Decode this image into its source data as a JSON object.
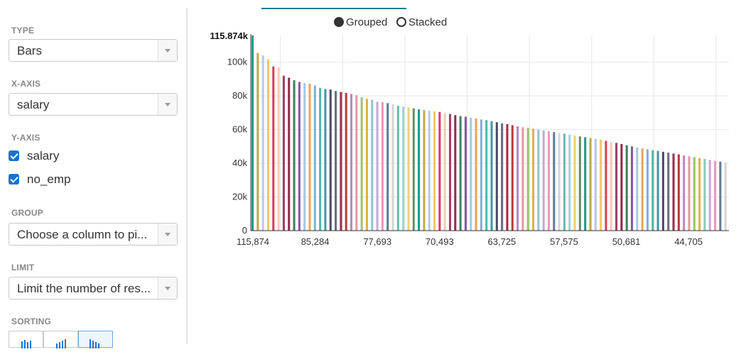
{
  "sidebar": {
    "type_label": "TYPE",
    "type_value": "Bars",
    "xaxis_label": "X-AXIS",
    "xaxis_value": "salary",
    "yaxis_label": "Y-AXIS",
    "yaxis_items": [
      {
        "label": "salary",
        "checked": true
      },
      {
        "label": "no_emp",
        "checked": true
      }
    ],
    "group_label": "GROUP",
    "group_placeholder": "Choose a column to pi...",
    "limit_label": "LIMIT",
    "limit_placeholder": "Limit the number of res...",
    "sorting_label": "SORTING",
    "sorting_active": 2
  },
  "legend": {
    "grouped": "Grouped",
    "stacked": "Stacked",
    "selected": "grouped"
  },
  "chart_data": {
    "type": "bar",
    "max_label": "115.874k",
    "ylim": [
      0,
      115874
    ],
    "y_ticks": [
      "0",
      "20k",
      "40k",
      "60k",
      "80k",
      "100k"
    ],
    "y_tick_values": [
      0,
      20000,
      40000,
      60000,
      80000,
      100000
    ],
    "x_tick_labels": [
      "115,874",
      "85,284",
      "77,693",
      "70,493",
      "63,725",
      "57,575",
      "50,681",
      "44,705"
    ],
    "series_names": [
      "salary",
      "no_emp"
    ],
    "values": [
      115874,
      105500,
      104000,
      101600,
      97500,
      97000,
      92000,
      90800,
      89300,
      88300,
      87600,
      87200,
      86200,
      84800,
      84100,
      83800,
      82900,
      82300,
      81800,
      81200,
      80400,
      79200,
      78300,
      77693,
      76600,
      76300,
      75700,
      74900,
      74100,
      73600,
      73200,
      72600,
      72000,
      71600,
      71200,
      70900,
      70493,
      69800,
      69300,
      68600,
      68000,
      67600,
      67000,
      66600,
      66000,
      65600,
      65000,
      64400,
      63725,
      63200,
      62600,
      62000,
      61400,
      61000,
      60500,
      60000,
      59500,
      59000,
      58500,
      58000,
      57575,
      57000,
      56500,
      56000,
      55500,
      55000,
      54500,
      54000,
      53300,
      52600,
      52100,
      51400,
      50681,
      50000,
      49400,
      48800,
      48300,
      47800,
      47300,
      46800,
      46300,
      45800,
      45300,
      44705,
      44200,
      43700,
      43100,
      42600,
      42100,
      41500,
      41000,
      40500
    ]
  }
}
